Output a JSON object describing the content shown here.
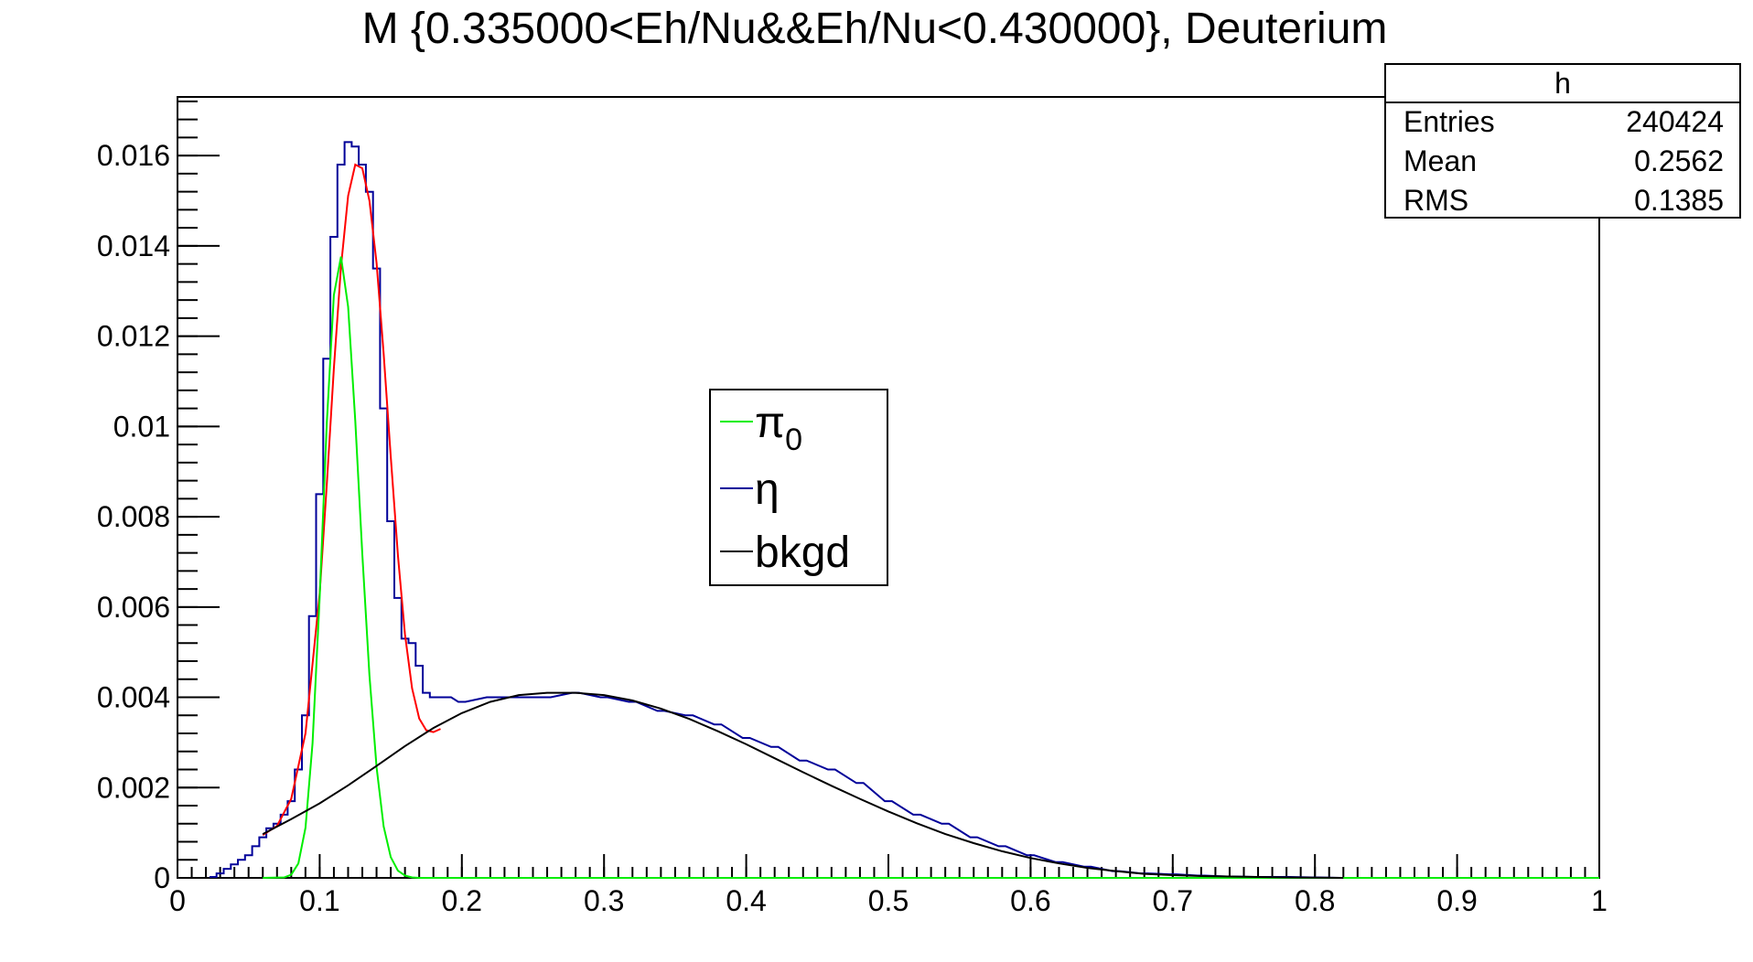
{
  "chart_data": {
    "type": "line",
    "title": "M {0.335000<Eh/Nu&&Eh/Nu<0.430000}, Deuterium",
    "xlabel": "",
    "ylabel": "",
    "xlim": [
      0,
      1
    ],
    "ylim": [
      0,
      0.0173
    ],
    "x_ticks": [
      0,
      0.1,
      0.2,
      0.3,
      0.4,
      0.5,
      0.6,
      0.7,
      0.8,
      0.9,
      1
    ],
    "x_tick_labels": [
      "0",
      "0.1",
      "0.2",
      "0.3",
      "0.4",
      "0.5",
      "0.6",
      "0.7",
      "0.8",
      "0.9",
      "1"
    ],
    "y_ticks": [
      0,
      0.002,
      0.004,
      0.006,
      0.008,
      0.01,
      0.012,
      0.014,
      0.016
    ],
    "y_tick_labels": [
      "0",
      "0.002",
      "0.004",
      "0.006",
      "0.008",
      "0.01",
      "0.012",
      "0.014",
      "0.016"
    ],
    "grid": false,
    "stats_box": {
      "title": "h",
      "rows": [
        {
          "label": "Entries",
          "value": "240424"
        },
        {
          "label": "Mean",
          "value": "0.2562"
        },
        {
          "label": "RMS",
          "value": "0.1385"
        }
      ]
    },
    "legend": {
      "placement": "center",
      "entries": [
        {
          "label": "π",
          "subscript": "0",
          "color": "#00ee00"
        },
        {
          "label": "η",
          "subscript": "",
          "color": "#000099"
        },
        {
          "label": "bkgd",
          "subscript": "",
          "color": "#000000"
        }
      ]
    },
    "series": [
      {
        "name": "η",
        "style": "histogram",
        "color": "#000099",
        "bin_width": 0.005,
        "x": [
          0.025,
          0.03,
          0.035,
          0.04,
          0.045,
          0.05,
          0.055,
          0.06,
          0.065,
          0.07,
          0.075,
          0.08,
          0.085,
          0.09,
          0.095,
          0.1,
          0.105,
          0.11,
          0.115,
          0.12,
          0.125,
          0.13,
          0.135,
          0.14,
          0.145,
          0.15,
          0.155,
          0.16,
          0.165,
          0.17,
          0.175,
          0.18,
          0.185,
          0.19,
          0.2,
          0.22,
          0.24,
          0.26,
          0.28,
          0.3,
          0.32,
          0.34,
          0.36,
          0.38,
          0.4,
          0.42,
          0.44,
          0.46,
          0.48,
          0.5,
          0.52,
          0.54,
          0.56,
          0.58,
          0.6,
          0.62,
          0.64,
          0.66,
          0.68,
          0.7,
          0.72,
          0.74,
          0.76,
          0.78,
          0.8,
          0.82
        ],
        "y": [
          2e-05,
          0.0001,
          0.0002,
          0.0003,
          0.0004,
          0.0005,
          0.0007,
          0.0009,
          0.0011,
          0.0012,
          0.0014,
          0.0017,
          0.0024,
          0.0036,
          0.0058,
          0.0085,
          0.0115,
          0.0142,
          0.0158,
          0.0163,
          0.0162,
          0.0158,
          0.0152,
          0.0135,
          0.0104,
          0.0079,
          0.0062,
          0.0053,
          0.0052,
          0.0047,
          0.0041,
          0.004,
          0.004,
          0.004,
          0.0039,
          0.004,
          0.004,
          0.004,
          0.0041,
          0.004,
          0.0039,
          0.0037,
          0.0036,
          0.0034,
          0.0031,
          0.0029,
          0.0026,
          0.0024,
          0.0021,
          0.0017,
          0.0014,
          0.0012,
          0.0009,
          0.0007,
          0.0005,
          0.00035,
          0.00025,
          0.00015,
          0.0001,
          8e-05,
          5e-05,
          3e-05,
          2e-05,
          2e-05,
          1e-05,
          0.0
        ]
      },
      {
        "name": "",
        "style": "curve",
        "color": "#ff0000",
        "x": [
          0.06,
          0.07,
          0.08,
          0.09,
          0.1,
          0.105,
          0.11,
          0.115,
          0.12,
          0.125,
          0.13,
          0.135,
          0.14,
          0.145,
          0.15,
          0.155,
          0.16,
          0.165,
          0.17,
          0.175,
          0.18,
          0.185
        ],
        "y": [
          0.00095,
          0.00115,
          0.00175,
          0.0032,
          0.0063,
          0.00872,
          0.01128,
          0.01354,
          0.01511,
          0.0158,
          0.01572,
          0.015,
          0.01362,
          0.01162,
          0.00933,
          0.00715,
          0.0054,
          0.0042,
          0.00353,
          0.00327,
          0.00323,
          0.0033
        ]
      },
      {
        "name": "π",
        "style": "curve",
        "color": "#00ee00",
        "x": [
          0.06,
          0.075,
          0.08,
          0.085,
          0.09,
          0.095,
          0.1,
          0.105,
          0.11,
          0.115,
          0.12,
          0.125,
          0.13,
          0.135,
          0.14,
          0.145,
          0.15,
          0.155,
          0.16,
          0.165,
          0.17,
          0.175,
          0.18,
          0.185,
          0.19,
          0.195,
          0.2,
          0.25,
          0.3,
          0.4,
          0.5,
          0.6,
          0.7,
          0.8,
          0.9,
          1.0
        ],
        "y": [
          0.0,
          1e-05,
          7e-05,
          0.00032,
          0.00111,
          0.00298,
          0.00621,
          0.01008,
          0.01291,
          0.01376,
          0.01265,
          0.01013,
          0.00717,
          0.00449,
          0.00245,
          0.00114,
          0.00046,
          0.00016,
          5e-05,
          1e-05,
          0.0,
          0.0,
          0.0,
          0.0,
          0.0,
          0.0,
          0.0,
          0.0,
          0.0,
          0.0,
          0.0,
          0.0,
          0.0,
          0.0,
          0.0,
          0.0
        ]
      },
      {
        "name": "bkgd",
        "style": "curve",
        "color": "#000000",
        "x": [
          0.06,
          0.08,
          0.1,
          0.12,
          0.14,
          0.16,
          0.18,
          0.2,
          0.22,
          0.24,
          0.26,
          0.28,
          0.3,
          0.32,
          0.34,
          0.36,
          0.38,
          0.4,
          0.42,
          0.44,
          0.46,
          0.48,
          0.5,
          0.52,
          0.54,
          0.56,
          0.58,
          0.6,
          0.62,
          0.64,
          0.66,
          0.68,
          0.7,
          0.72,
          0.74,
          0.76,
          0.78,
          0.8,
          0.82
        ],
        "y": [
          0.00097,
          0.0013,
          0.00165,
          0.00205,
          0.00248,
          0.00292,
          0.00332,
          0.00365,
          0.0039,
          0.00405,
          0.0041,
          0.0041,
          0.00405,
          0.00393,
          0.00375,
          0.00352,
          0.00325,
          0.00296,
          0.00265,
          0.00234,
          0.00204,
          0.00175,
          0.00147,
          0.00121,
          0.00097,
          0.00077,
          0.00059,
          0.00044,
          0.00032,
          0.00022,
          0.00015,
          9e-05,
          6e-05,
          4e-05,
          3e-05,
          2e-05,
          1e-05,
          5e-06,
          0.0
        ]
      }
    ]
  }
}
